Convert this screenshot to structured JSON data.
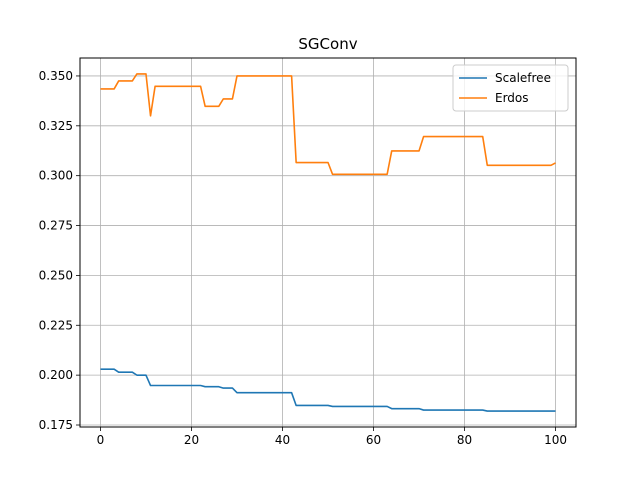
{
  "chart_data": {
    "type": "line",
    "title": "SGConv",
    "xlabel": "",
    "ylabel": "",
    "xlim": [
      -4.5,
      104.5
    ],
    "ylim": [
      0.174,
      0.359
    ],
    "xticks": [
      0,
      20,
      40,
      60,
      80,
      100
    ],
    "xtick_labels": [
      "0",
      "20",
      "40",
      "60",
      "80",
      "100"
    ],
    "yticks": [
      0.175,
      0.2,
      0.225,
      0.25,
      0.275,
      0.3,
      0.325,
      0.35
    ],
    "ytick_labels": [
      "0.175",
      "0.200",
      "0.225",
      "0.250",
      "0.275",
      "0.300",
      "0.325",
      "0.350"
    ],
    "grid": true,
    "legend_position": "top-right",
    "series": [
      {
        "name": "Scalefree",
        "color": "#1f77b4",
        "points": [
          [
            0,
            0.203
          ],
          [
            3,
            0.203
          ],
          [
            4,
            0.2015
          ],
          [
            7,
            0.2015
          ],
          [
            8,
            0.2
          ],
          [
            10,
            0.2
          ],
          [
            11,
            0.1948
          ],
          [
            22,
            0.1948
          ],
          [
            23,
            0.1942
          ],
          [
            26,
            0.1942
          ],
          [
            27,
            0.1935
          ],
          [
            29,
            0.1935
          ],
          [
            30,
            0.1912
          ],
          [
            42,
            0.1912
          ],
          [
            43,
            0.1848
          ],
          [
            50,
            0.1848
          ],
          [
            51,
            0.1843
          ],
          [
            63,
            0.1843
          ],
          [
            64,
            0.1832
          ],
          [
            70,
            0.1832
          ],
          [
            71,
            0.1825
          ],
          [
            84,
            0.1825
          ],
          [
            85,
            0.182
          ],
          [
            100,
            0.182
          ]
        ]
      },
      {
        "name": "Erdos",
        "color": "#ff7f0e",
        "points": [
          [
            0,
            0.3435
          ],
          [
            3,
            0.3435
          ],
          [
            4,
            0.3475
          ],
          [
            7,
            0.3475
          ],
          [
            8,
            0.351
          ],
          [
            10,
            0.351
          ],
          [
            11,
            0.33
          ],
          [
            12,
            0.3448
          ],
          [
            22,
            0.3448
          ],
          [
            23,
            0.3348
          ],
          [
            26,
            0.3348
          ],
          [
            27,
            0.3385
          ],
          [
            29,
            0.3385
          ],
          [
            30,
            0.35
          ],
          [
            42,
            0.35
          ],
          [
            43,
            0.3066
          ],
          [
            50,
            0.3066
          ],
          [
            51,
            0.3007
          ],
          [
            63,
            0.3007
          ],
          [
            64,
            0.3124
          ],
          [
            70,
            0.3124
          ],
          [
            71,
            0.3196
          ],
          [
            84,
            0.3196
          ],
          [
            85,
            0.3052
          ],
          [
            99,
            0.3052
          ],
          [
            100,
            0.3064
          ]
        ]
      }
    ]
  }
}
